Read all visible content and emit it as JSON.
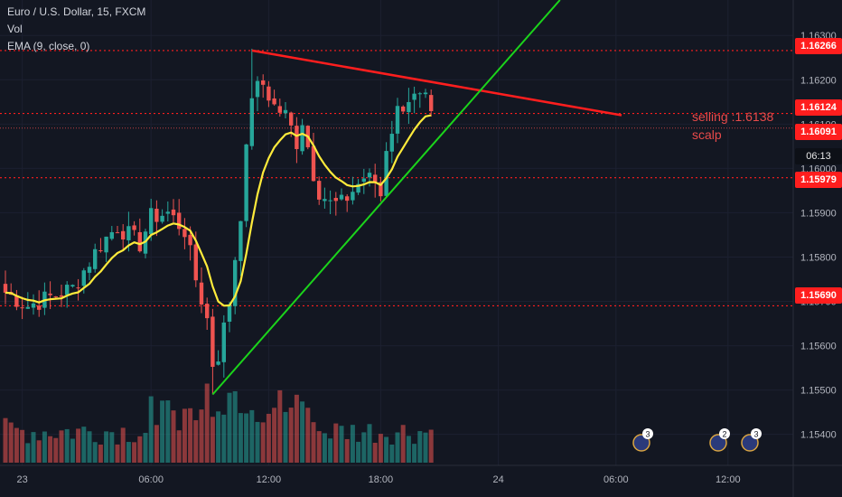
{
  "legend": {
    "symbol": "Euro / U.S. Dollar, 15, FXCM",
    "volume": "Vol",
    "ema": "EMA (9, close, 0)"
  },
  "price_labels": {
    "level_1": "1.16266",
    "level_2": "1.16124",
    "last": "1.16091",
    "countdown": "06:13",
    "level_3": "1.15979",
    "level_4": "1.15690"
  },
  "annotation": {
    "line1": "selling :1.6138",
    "line2": "scalp"
  },
  "event_badges": [
    "3",
    "2",
    "3"
  ],
  "colors": {
    "background": "#131722",
    "bull": "#26a69a",
    "bear": "#ef5350",
    "ema": "#ffeb3b",
    "support_line": "#1bd41b",
    "resistance_line": "#ff1e1e",
    "level_dotted": "#ff1e1e"
  },
  "chart_data": {
    "type": "candlestick",
    "symbol": "EURUSD",
    "timeframe": "15",
    "price_axis_ticks": [
      1.163,
      1.162,
      1.161,
      1.16,
      1.159,
      1.158,
      1.157,
      1.156,
      1.155,
      1.154
    ],
    "price_axis_labels": [
      "1.16300",
      "1.16200",
      "1.16100",
      "1.16000",
      "1.15900",
      "1.15800",
      "1.15700",
      "1.15600",
      "1.15500",
      "1.15400"
    ],
    "time_axis_labels": [
      "23",
      "06:00",
      "12:00",
      "18:00",
      "24",
      "06:00",
      "12:00"
    ],
    "ylim": [
      1.1533,
      1.1638
    ],
    "horizontal_levels": [
      1.16266,
      1.16124,
      1.15979,
      1.1569
    ],
    "last_price": 1.16091,
    "resistance_line": {
      "from": {
        "bar": 44,
        "price": 1.16266
      },
      "to": {
        "bar": 110,
        "price": 1.1612
      }
    },
    "support_line": {
      "from": {
        "bar": 37,
        "price": 1.1549
      },
      "to": {
        "bar": 99,
        "price": 1.1638
      }
    },
    "close_path": [
      [
        0,
        1.1572
      ],
      [
        4,
        1.1569
      ],
      [
        8,
        1.1571
      ],
      [
        12,
        1.1573
      ],
      [
        14,
        1.1577
      ],
      [
        17,
        1.1583
      ],
      [
        20,
        1.1587
      ],
      [
        22,
        1.1585
      ],
      [
        24,
        1.1583
      ],
      [
        26,
        1.1589
      ],
      [
        29,
        1.159
      ],
      [
        32,
        1.1586
      ],
      [
        34,
        1.1575
      ],
      [
        36,
        1.1566
      ],
      [
        37,
        1.1556
      ],
      [
        38,
        1.1558
      ],
      [
        40,
        1.157
      ],
      [
        42,
        1.159
      ],
      [
        44,
        1.1617
      ],
      [
        46,
        1.1619
      ],
      [
        48,
        1.1614
      ],
      [
        50,
        1.1612
      ],
      [
        52,
        1.1606
      ],
      [
        53,
        1.1611
      ],
      [
        55,
        1.1599
      ],
      [
        56,
        1.1595
      ],
      [
        58,
        1.1592
      ],
      [
        60,
        1.1592
      ],
      [
        62,
        1.1595
      ],
      [
        64,
        1.1598
      ],
      [
        66,
        1.1597
      ],
      [
        67,
        1.1594
      ],
      [
        68,
        1.1605
      ],
      [
        70,
        1.1613
      ],
      [
        72,
        1.1616
      ],
      [
        75,
        1.1615
      ],
      [
        76,
        1.1611
      ]
    ],
    "ema_period": 9,
    "volume": {
      "shown": true,
      "relative_heights": "bottom overlay"
    }
  }
}
